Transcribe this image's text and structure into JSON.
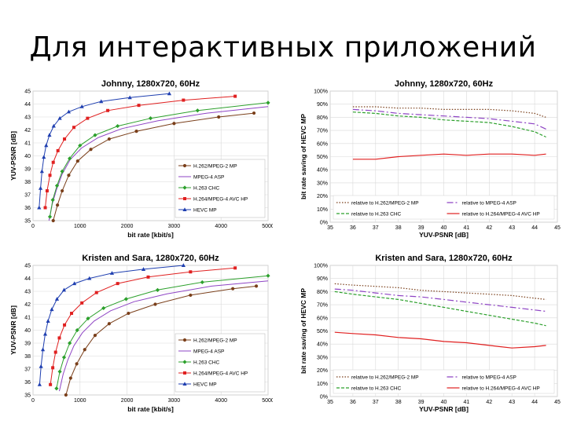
{
  "slide": {
    "title": "Для интерактивных приложений"
  },
  "colors": {
    "h262": "#7a3f1a",
    "mpeg4": "#8e44c4",
    "h263": "#2ca02c",
    "h264": "#e02020",
    "hevc": "#1f3fb0"
  },
  "chart_data": [
    {
      "type": "line",
      "title": "Johnny, 1280x720, 60Hz",
      "xlabel": "bit rate [kbit/s]",
      "ylabel": "YUV-PSNR [dB]",
      "xlim": [
        0,
        5000
      ],
      "ylim": [
        35,
        45
      ],
      "xticks": [
        "0",
        "1000",
        "2000",
        "3000",
        "4000",
        "5000"
      ],
      "yticks": [
        "35",
        "36",
        "37",
        "38",
        "39",
        "40",
        "41",
        "42",
        "43",
        "44",
        "45"
      ],
      "grid": true,
      "legend_position": "bottom-right",
      "series": [
        {
          "name": "H.262/MPEG-2 MP",
          "color_key": "h262",
          "marker": "circle",
          "x": [
            430,
            520,
            620,
            760,
            950,
            1230,
            1620,
            2200,
            3000,
            3950,
            4700
          ],
          "y": [
            35.0,
            36.2,
            37.3,
            38.5,
            39.6,
            40.5,
            41.3,
            41.9,
            42.5,
            43.0,
            43.3
          ]
        },
        {
          "name": "MPEG-4 ASP",
          "color_key": "mpeg4",
          "marker": "line",
          "x": [
            340,
            410,
            500,
            620,
            790,
            1030,
            1380,
            1890,
            2650,
            3700,
            5000
          ],
          "y": [
            35.0,
            36.3,
            37.4,
            38.6,
            39.7,
            40.6,
            41.4,
            42.1,
            42.7,
            43.3,
            43.8
          ]
        },
        {
          "name": "H.263 CHC",
          "color_key": "h263",
          "marker": "diamond",
          "x": [
            360,
            420,
            510,
            620,
            780,
            1000,
            1320,
            1800,
            2500,
            3500,
            5000
          ],
          "y": [
            35.3,
            36.6,
            37.7,
            38.8,
            39.8,
            40.8,
            41.6,
            42.3,
            42.9,
            43.5,
            44.1
          ]
        },
        {
          "name": "H.264/MPEG-4 AVC HP",
          "color_key": "h264",
          "marker": "square",
          "x": [
            260,
            300,
            360,
            430,
            530,
            670,
            870,
            1160,
            1590,
            2250,
            3200,
            4300
          ],
          "y": [
            36.0,
            37.3,
            38.5,
            39.5,
            40.4,
            41.3,
            42.2,
            42.9,
            43.5,
            43.9,
            44.3,
            44.6
          ]
        },
        {
          "name": "HEVC MP",
          "color_key": "hevc",
          "marker": "triangle",
          "x": [
            130,
            160,
            190,
            230,
            280,
            350,
            440,
            570,
            760,
            1040,
            1450,
            2060,
            2900
          ],
          "y": [
            36.0,
            37.5,
            38.8,
            39.9,
            40.8,
            41.6,
            42.3,
            42.9,
            43.4,
            43.8,
            44.2,
            44.5,
            44.8
          ]
        }
      ]
    },
    {
      "type": "line",
      "title": "Johnny, 1280x720, 60Hz",
      "xlabel": "YUV-PSNR [dB]",
      "ylabel": "bit rate saving of HEVC MP",
      "xlim": [
        35,
        45
      ],
      "ylim": [
        0,
        100
      ],
      "xticks": [
        "35",
        "36",
        "37",
        "38",
        "39",
        "40",
        "41",
        "42",
        "43",
        "44",
        "45"
      ],
      "yticks": [
        "0%",
        "10%",
        "20%",
        "30%",
        "40%",
        "50%",
        "60%",
        "70%",
        "80%",
        "90%",
        "100%"
      ],
      "grid": true,
      "legend_position": "bottom",
      "series": [
        {
          "name": "relative to H.262/MPEG-2 MP",
          "color_key": "h262",
          "dash": "1.5,2",
          "x": [
            36,
            37,
            38,
            39,
            40,
            41,
            42,
            43,
            44,
            44.5
          ],
          "y": [
            88,
            88,
            87,
            87,
            86,
            86,
            86,
            85,
            83,
            80
          ]
        },
        {
          "name": "relative to MPEG-4 ASP",
          "color_key": "mpeg4",
          "dash": "8,3,2,3",
          "x": [
            36,
            37,
            38,
            39,
            40,
            41,
            42,
            43,
            44,
            44.5
          ],
          "y": [
            86,
            85,
            83,
            82,
            81,
            80,
            79,
            77,
            75,
            71
          ]
        },
        {
          "name": "relative to H.263 CHC",
          "color_key": "h263",
          "dash": "4,2",
          "x": [
            36,
            37,
            38,
            39,
            40,
            41,
            42,
            43,
            44,
            44.5
          ],
          "y": [
            84,
            83,
            81,
            80,
            78,
            77,
            76,
            73,
            69,
            65
          ]
        },
        {
          "name": "relative to H.264/MPEG-4 AVC HP",
          "color_key": "h264",
          "dash": "",
          "x": [
            36,
            37,
            38,
            39,
            40,
            41,
            42,
            43,
            44,
            44.5
          ],
          "y": [
            48,
            48,
            50,
            51,
            52,
            51,
            52,
            52,
            51,
            52
          ]
        }
      ]
    },
    {
      "type": "line",
      "title": "Kristen and Sara, 1280x720, 60Hz",
      "xlabel": "bit rate [kbit/s]",
      "ylabel": "YUV-PSNR [dB]",
      "xlim": [
        0,
        5000
      ],
      "ylim": [
        35,
        45
      ],
      "xticks": [
        "0",
        "1000",
        "2000",
        "3000",
        "4000",
        "5000"
      ],
      "yticks": [
        "35",
        "36",
        "37",
        "38",
        "39",
        "40",
        "41",
        "42",
        "43",
        "44",
        "45"
      ],
      "grid": true,
      "legend_position": "bottom-right",
      "series": [
        {
          "name": "H.262/MPEG-2 MP",
          "color_key": "h262",
          "marker": "circle",
          "x": [
            700,
            800,
            930,
            1100,
            1320,
            1620,
            2030,
            2600,
            3350,
            4250,
            4750
          ],
          "y": [
            35.0,
            36.3,
            37.4,
            38.5,
            39.6,
            40.5,
            41.3,
            42.0,
            42.7,
            43.2,
            43.4
          ]
        },
        {
          "name": "MPEG-4 ASP",
          "color_key": "mpeg4",
          "marker": "line",
          "x": [
            560,
            640,
            740,
            870,
            1050,
            1300,
            1650,
            2150,
            2850,
            3800,
            5000
          ],
          "y": [
            35.3,
            36.6,
            37.7,
            38.8,
            39.8,
            40.7,
            41.5,
            42.2,
            42.8,
            43.4,
            43.8
          ]
        },
        {
          "name": "H.263 CHC",
          "color_key": "h263",
          "marker": "diamond",
          "x": [
            500,
            570,
            660,
            780,
            940,
            1170,
            1500,
            1980,
            2650,
            3600,
            5000
          ],
          "y": [
            35.5,
            36.8,
            37.9,
            39.0,
            40.0,
            40.9,
            41.7,
            42.4,
            43.1,
            43.7,
            44.2
          ]
        },
        {
          "name": "H.264/MPEG-4 AVC HP",
          "color_key": "h264",
          "marker": "square",
          "x": [
            370,
            420,
            480,
            560,
            670,
            820,
            1040,
            1350,
            1800,
            2450,
            3350,
            4300
          ],
          "y": [
            35.8,
            37.1,
            38.3,
            39.4,
            40.4,
            41.3,
            42.1,
            42.9,
            43.6,
            44.1,
            44.5,
            44.8
          ]
        },
        {
          "name": "HEVC MP",
          "color_key": "hevc",
          "marker": "triangle",
          "x": [
            140,
            170,
            210,
            260,
            320,
            400,
            510,
            660,
            880,
            1200,
            1680,
            2350,
            3200
          ],
          "y": [
            35.8,
            37.2,
            38.5,
            39.7,
            40.7,
            41.6,
            42.4,
            43.1,
            43.6,
            44.0,
            44.4,
            44.7,
            45.0
          ]
        }
      ]
    },
    {
      "type": "line",
      "title": "Kristen and Sara, 1280x720, 60Hz",
      "xlabel": "YUV-PSNR [dB]",
      "ylabel": "bit rate saving of HEVC MP",
      "xlim": [
        35,
        45
      ],
      "ylim": [
        0,
        100
      ],
      "xticks": [
        "35",
        "36",
        "37",
        "38",
        "39",
        "40",
        "41",
        "42",
        "43",
        "44",
        "45"
      ],
      "yticks": [
        "0%",
        "10%",
        "20%",
        "30%",
        "40%",
        "50%",
        "60%",
        "70%",
        "80%",
        "90%",
        "100%"
      ],
      "grid": true,
      "legend_position": "bottom",
      "series": [
        {
          "name": "relative to H.262/MPEG-2 MP",
          "color_key": "h262",
          "dash": "1.5,2",
          "x": [
            35.2,
            36,
            37,
            38,
            39,
            40,
            41,
            42,
            43,
            44,
            44.5
          ],
          "y": [
            86,
            85,
            84,
            83,
            81,
            80,
            79,
            78,
            77,
            75,
            74
          ]
        },
        {
          "name": "relative to MPEG-4 ASP",
          "color_key": "mpeg4",
          "dash": "8,3,2,3",
          "x": [
            35.2,
            36,
            37,
            38,
            39,
            40,
            41,
            42,
            43,
            44,
            44.5
          ],
          "y": [
            82,
            81,
            79,
            77,
            76,
            74,
            72,
            70,
            68,
            66,
            65
          ]
        },
        {
          "name": "relative to H.263 CHC",
          "color_key": "h263",
          "dash": "4,2",
          "x": [
            35.2,
            36,
            37,
            38,
            39,
            40,
            41,
            42,
            43,
            44,
            44.5
          ],
          "y": [
            80,
            78,
            76,
            74,
            71,
            68,
            65,
            62,
            59,
            56,
            54
          ]
        },
        {
          "name": "relative to H.264/MPEG-4 AVC HP",
          "color_key": "h264",
          "dash": "",
          "x": [
            35.2,
            36,
            37,
            38,
            39,
            40,
            41,
            42,
            43,
            44,
            44.5
          ],
          "y": [
            49,
            48,
            47,
            45,
            44,
            42,
            41,
            39,
            37,
            38,
            39
          ]
        }
      ]
    }
  ]
}
